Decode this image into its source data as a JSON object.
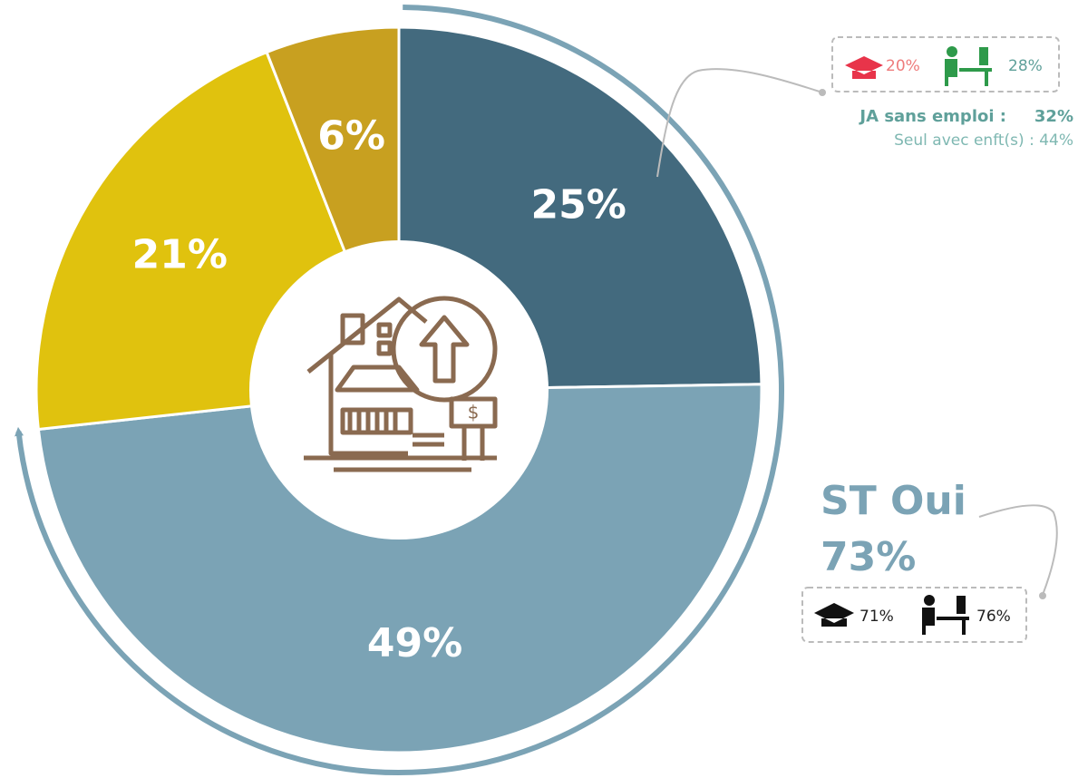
{
  "chart_data": {
    "type": "pie",
    "categories": [
      null,
      null,
      null,
      null
    ],
    "values": [
      25,
      49,
      21,
      6
    ],
    "value_labels": [
      "25%",
      "49%",
      "21%",
      "6%"
    ],
    "colors": [
      "#436a7e",
      "#7ba3b5",
      "#e0c20e",
      "#c8a020"
    ],
    "annotations": {
      "top_box": {
        "cap_value": "20%",
        "worker_value": "28%",
        "line1_label": "JA sans emploi :",
        "line1_value": "32%",
        "line2": "Seul avec enft(s) : 44%"
      },
      "total": {
        "label": "ST Oui",
        "value": "73%",
        "cap_value": "71%",
        "worker_value": "76%"
      }
    }
  }
}
